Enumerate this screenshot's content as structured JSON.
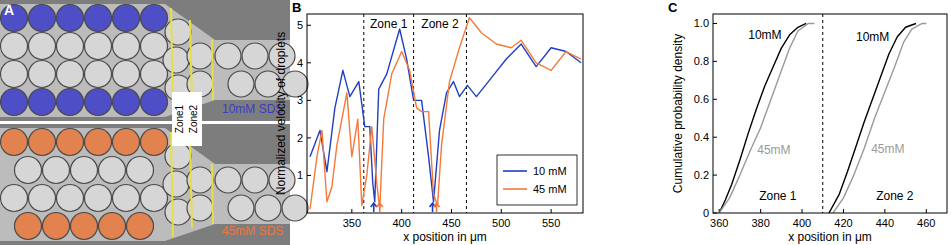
{
  "chart_data": [
    {
      "type": "image",
      "title": "A",
      "annotations": [
        {
          "text": "Zone1"
        },
        {
          "text": "Zone2"
        },
        {
          "text": "10mM SDS",
          "color": "#3b3bc8"
        },
        {
          "text": "45mM SDS",
          "color": "#e8783c"
        }
      ]
    },
    {
      "type": "line",
      "title": "B",
      "x_label": "x position in μm",
      "y_label": "Normalized velocity of droplets",
      "xlim": [
        305,
        582
      ],
      "ylim": [
        0,
        5.3
      ],
      "xticks": [
        350,
        400,
        450,
        500,
        550
      ],
      "yticks": [
        1,
        2,
        3,
        4,
        5
      ],
      "legend": "lower right",
      "dividers": [
        362,
        412,
        465
      ],
      "annotations": [
        {
          "text": "Zone 1"
        },
        {
          "text": "Zone 2"
        }
      ],
      "arrows": [
        {
          "x": 372,
          "color": "#1f3fc4"
        },
        {
          "x": 378,
          "color": "#f5793a"
        },
        {
          "x": 431,
          "color": "#1f3fc4"
        },
        {
          "x": 435,
          "color": "#f5793a"
        }
      ],
      "series": [
        {
          "name": "10 mM",
          "color": "#1f3fc4",
          "x": [
            308,
            318,
            325,
            333,
            341,
            348,
            357,
            363,
            368,
            371,
            373,
            377,
            385,
            398,
            405,
            412,
            420,
            427,
            432,
            438,
            445,
            452,
            458,
            466,
            475,
            490,
            505,
            520,
            535,
            550,
            565,
            580
          ],
          "values": [
            1.5,
            2.2,
            1.1,
            2.8,
            3.8,
            3.1,
            3.5,
            2.3,
            2.3,
            0.8,
            0.3,
            3.3,
            3.7,
            4.9,
            4.1,
            3.0,
            3.0,
            1.5,
            0.3,
            2.2,
            3.2,
            3.5,
            3.1,
            3.4,
            3.1,
            3.6,
            4.1,
            4.5,
            3.9,
            4.4,
            4.3,
            4.0
          ]
        },
        {
          "name": "45 mM",
          "color": "#f5793a",
          "x": [
            308,
            315,
            320,
            325,
            330,
            335,
            345,
            350,
            356,
            360,
            365,
            370,
            375,
            378,
            382,
            390,
            400,
            408,
            415,
            420,
            427,
            432,
            436,
            440,
            448,
            458,
            468,
            480,
            495,
            510,
            520,
            535,
            550,
            565,
            580
          ],
          "values": [
            0.1,
            1.5,
            2.2,
            0.3,
            0.7,
            1.8,
            3.2,
            1.5,
            2.5,
            0.2,
            1.0,
            2.3,
            0.8,
            0.1,
            2.5,
            3.7,
            4.3,
            3.8,
            2.8,
            2.7,
            2.7,
            0.5,
            0.2,
            1.8,
            3.5,
            4.4,
            5.2,
            4.8,
            4.5,
            4.4,
            4.6,
            4.0,
            3.8,
            4.3,
            4.1
          ]
        }
      ]
    },
    {
      "type": "line",
      "title": "C",
      "x_label": "x position in μm",
      "y_label": "Cumulative probability density",
      "xlim": [
        357,
        470
      ],
      "ylim": [
        0,
        1.05
      ],
      "xticks": [
        360,
        380,
        400,
        420,
        440,
        460
      ],
      "yticks": [
        0,
        0.2,
        0.4,
        0.6,
        0.8,
        {
          "value": 1,
          "label": "1.0"
        }
      ],
      "dividers": [
        410
      ],
      "annotations": [
        {
          "text": "Zone 1"
        },
        {
          "text": "Zone 2"
        }
      ],
      "series": [
        {
          "name": "10mM",
          "color": "#000000",
          "x": [
            360,
            363,
            366,
            370,
            374,
            378,
            382,
            386,
            390,
            394,
            398,
            402
          ],
          "values": [
            0,
            0.07,
            0.15,
            0.28,
            0.42,
            0.55,
            0.67,
            0.77,
            0.87,
            0.94,
            0.98,
            1.0
          ]
        },
        {
          "name": "45mM",
          "color": "#9a9a9a",
          "x": [
            360,
            365,
            370,
            375,
            380,
            385,
            390,
            394,
            398,
            403,
            406
          ],
          "values": [
            0,
            0.08,
            0.2,
            0.33,
            0.45,
            0.6,
            0.75,
            0.87,
            0.96,
            1.0,
            1.0
          ]
        },
        {
          "name": "10mM",
          "color": "#000000",
          "x": [
            413,
            418,
            422,
            426,
            430,
            434,
            438,
            442,
            446,
            450,
            455
          ],
          "values": [
            0,
            0.1,
            0.22,
            0.35,
            0.48,
            0.6,
            0.72,
            0.84,
            0.93,
            0.98,
            1.0
          ]
        },
        {
          "name": "45mM",
          "color": "#9a9a9a",
          "x": [
            415,
            420,
            425,
            430,
            435,
            440,
            445,
            449,
            453,
            458,
            460
          ],
          "values": [
            0,
            0.08,
            0.2,
            0.34,
            0.5,
            0.64,
            0.78,
            0.9,
            0.97,
            1.0,
            1.0
          ]
        }
      ]
    }
  ]
}
